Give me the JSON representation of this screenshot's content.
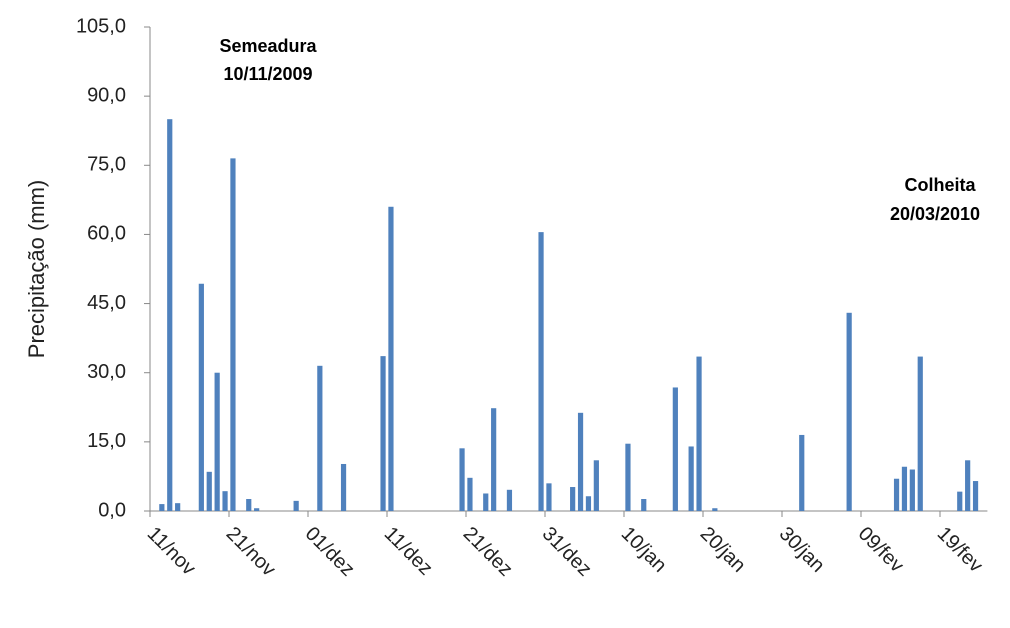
{
  "chart_data": {
    "type": "bar",
    "y_label": "Precipitação (mm)",
    "annotations": [
      "Semeadura",
      "10/11/2009",
      "Colheita",
      "20/03/2010"
    ],
    "categories": [
      "11/nov",
      null,
      null,
      null,
      null,
      null,
      null,
      null,
      null,
      null,
      "21/nov",
      null,
      null,
      null,
      null,
      null,
      null,
      null,
      null,
      null,
      "01/dez",
      null,
      null,
      null,
      null,
      null,
      null,
      null,
      null,
      null,
      "11/dez",
      null,
      null,
      null,
      null,
      null,
      null,
      null,
      null,
      null,
      "21/dez",
      null,
      null,
      null,
      null,
      null,
      null,
      null,
      null,
      null,
      "31/dez",
      null,
      null,
      null,
      null,
      null,
      null,
      null,
      null,
      null,
      "10/jan",
      null,
      null,
      null,
      null,
      null,
      null,
      null,
      null,
      null,
      "20/jan",
      null,
      null,
      null,
      null,
      null,
      null,
      null,
      null,
      null,
      "30/jan",
      null,
      null,
      null,
      null,
      null,
      null,
      null,
      null,
      null,
      "09/fev",
      null,
      null,
      null,
      null,
      null,
      null,
      null,
      null,
      null,
      "19/fev",
      null,
      null,
      null,
      null,
      null
    ],
    "values": [
      0,
      1.5,
      85,
      1.7,
      0,
      0,
      49.3,
      8.5,
      30,
      4.3,
      76.5,
      0,
      2.6,
      0.6,
      0,
      0,
      0,
      0,
      2.2,
      0,
      0,
      31.5,
      0,
      0,
      10.2,
      0,
      0,
      0,
      0,
      33.6,
      66,
      0,
      0,
      0,
      0,
      0,
      0,
      0,
      0,
      13.6,
      7.2,
      0,
      3.8,
      22.3,
      0,
      4.6,
      0,
      0,
      0,
      60.5,
      6,
      0,
      0,
      5.2,
      21.3,
      3.2,
      11,
      0,
      0,
      0,
      14.6,
      0,
      2.6,
      0,
      0,
      0,
      26.8,
      0,
      14,
      33.5,
      0,
      0.6,
      0,
      0,
      0,
      0,
      0,
      0,
      0,
      0,
      0,
      0,
      16.5,
      0,
      0,
      0,
      0,
      0,
      43,
      0,
      0,
      0,
      0,
      0,
      7,
      9.6,
      9,
      33.5,
      0,
      0,
      0,
      0,
      4.2,
      11,
      6.5,
      0
    ],
    "color": "#4f81bd",
    "ylim": [
      0,
      105
    ],
    "yticks": [
      {
        "value": 0,
        "label": "0,0"
      },
      {
        "value": 15,
        "label": "15,0"
      },
      {
        "value": 30,
        "label": "30,0"
      },
      {
        "value": 45,
        "label": "45,0"
      },
      {
        "value": 60,
        "label": "60,0"
      },
      {
        "value": 75,
        "label": "75,0"
      },
      {
        "value": 90,
        "label": "90,0"
      },
      {
        "value": 105,
        "label": "105,0"
      }
    ],
    "grid": false
  }
}
